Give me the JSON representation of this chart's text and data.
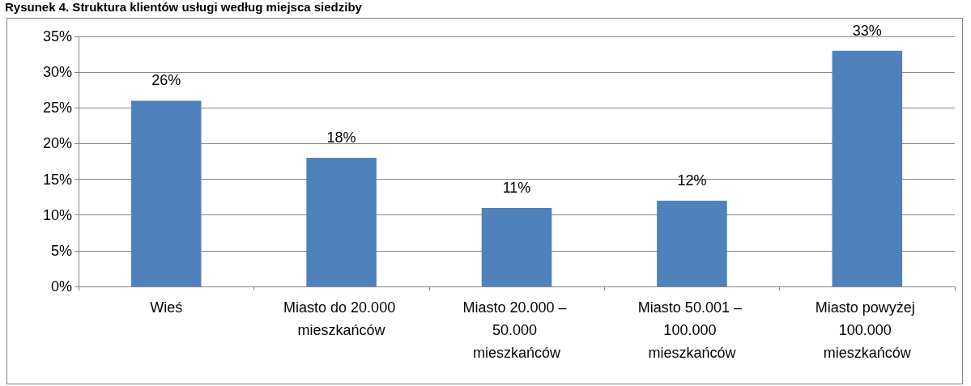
{
  "chart_data": {
    "type": "bar",
    "title": "Rysunek 4. Struktura klientów usługi według miejsca siedziby",
    "categories": [
      "Wieś",
      "Miasto do 20.000 mieszkańców",
      "Miasto 20.000 – 50.000 mieszkańców",
      "Miasto 50.001 – 100.000 mieszkańców",
      "Miasto powyżej 100.000 mieszkańców"
    ],
    "values": [
      26,
      18,
      11,
      12,
      33
    ],
    "value_labels": [
      "26%",
      "18%",
      "11%",
      "12%",
      "33%"
    ],
    "color": "#4f81bd",
    "ylim": [
      0,
      35
    ],
    "yticks": [
      {
        "value": 0,
        "label": "0%"
      },
      {
        "value": 5,
        "label": "5%"
      },
      {
        "value": 10,
        "label": "10%"
      },
      {
        "value": 15,
        "label": "15%"
      },
      {
        "value": 20,
        "label": "20%"
      },
      {
        "value": 25,
        "label": "25%"
      },
      {
        "value": 30,
        "label": "30%"
      },
      {
        "value": 35,
        "label": "35%"
      }
    ],
    "grid": "y"
  }
}
